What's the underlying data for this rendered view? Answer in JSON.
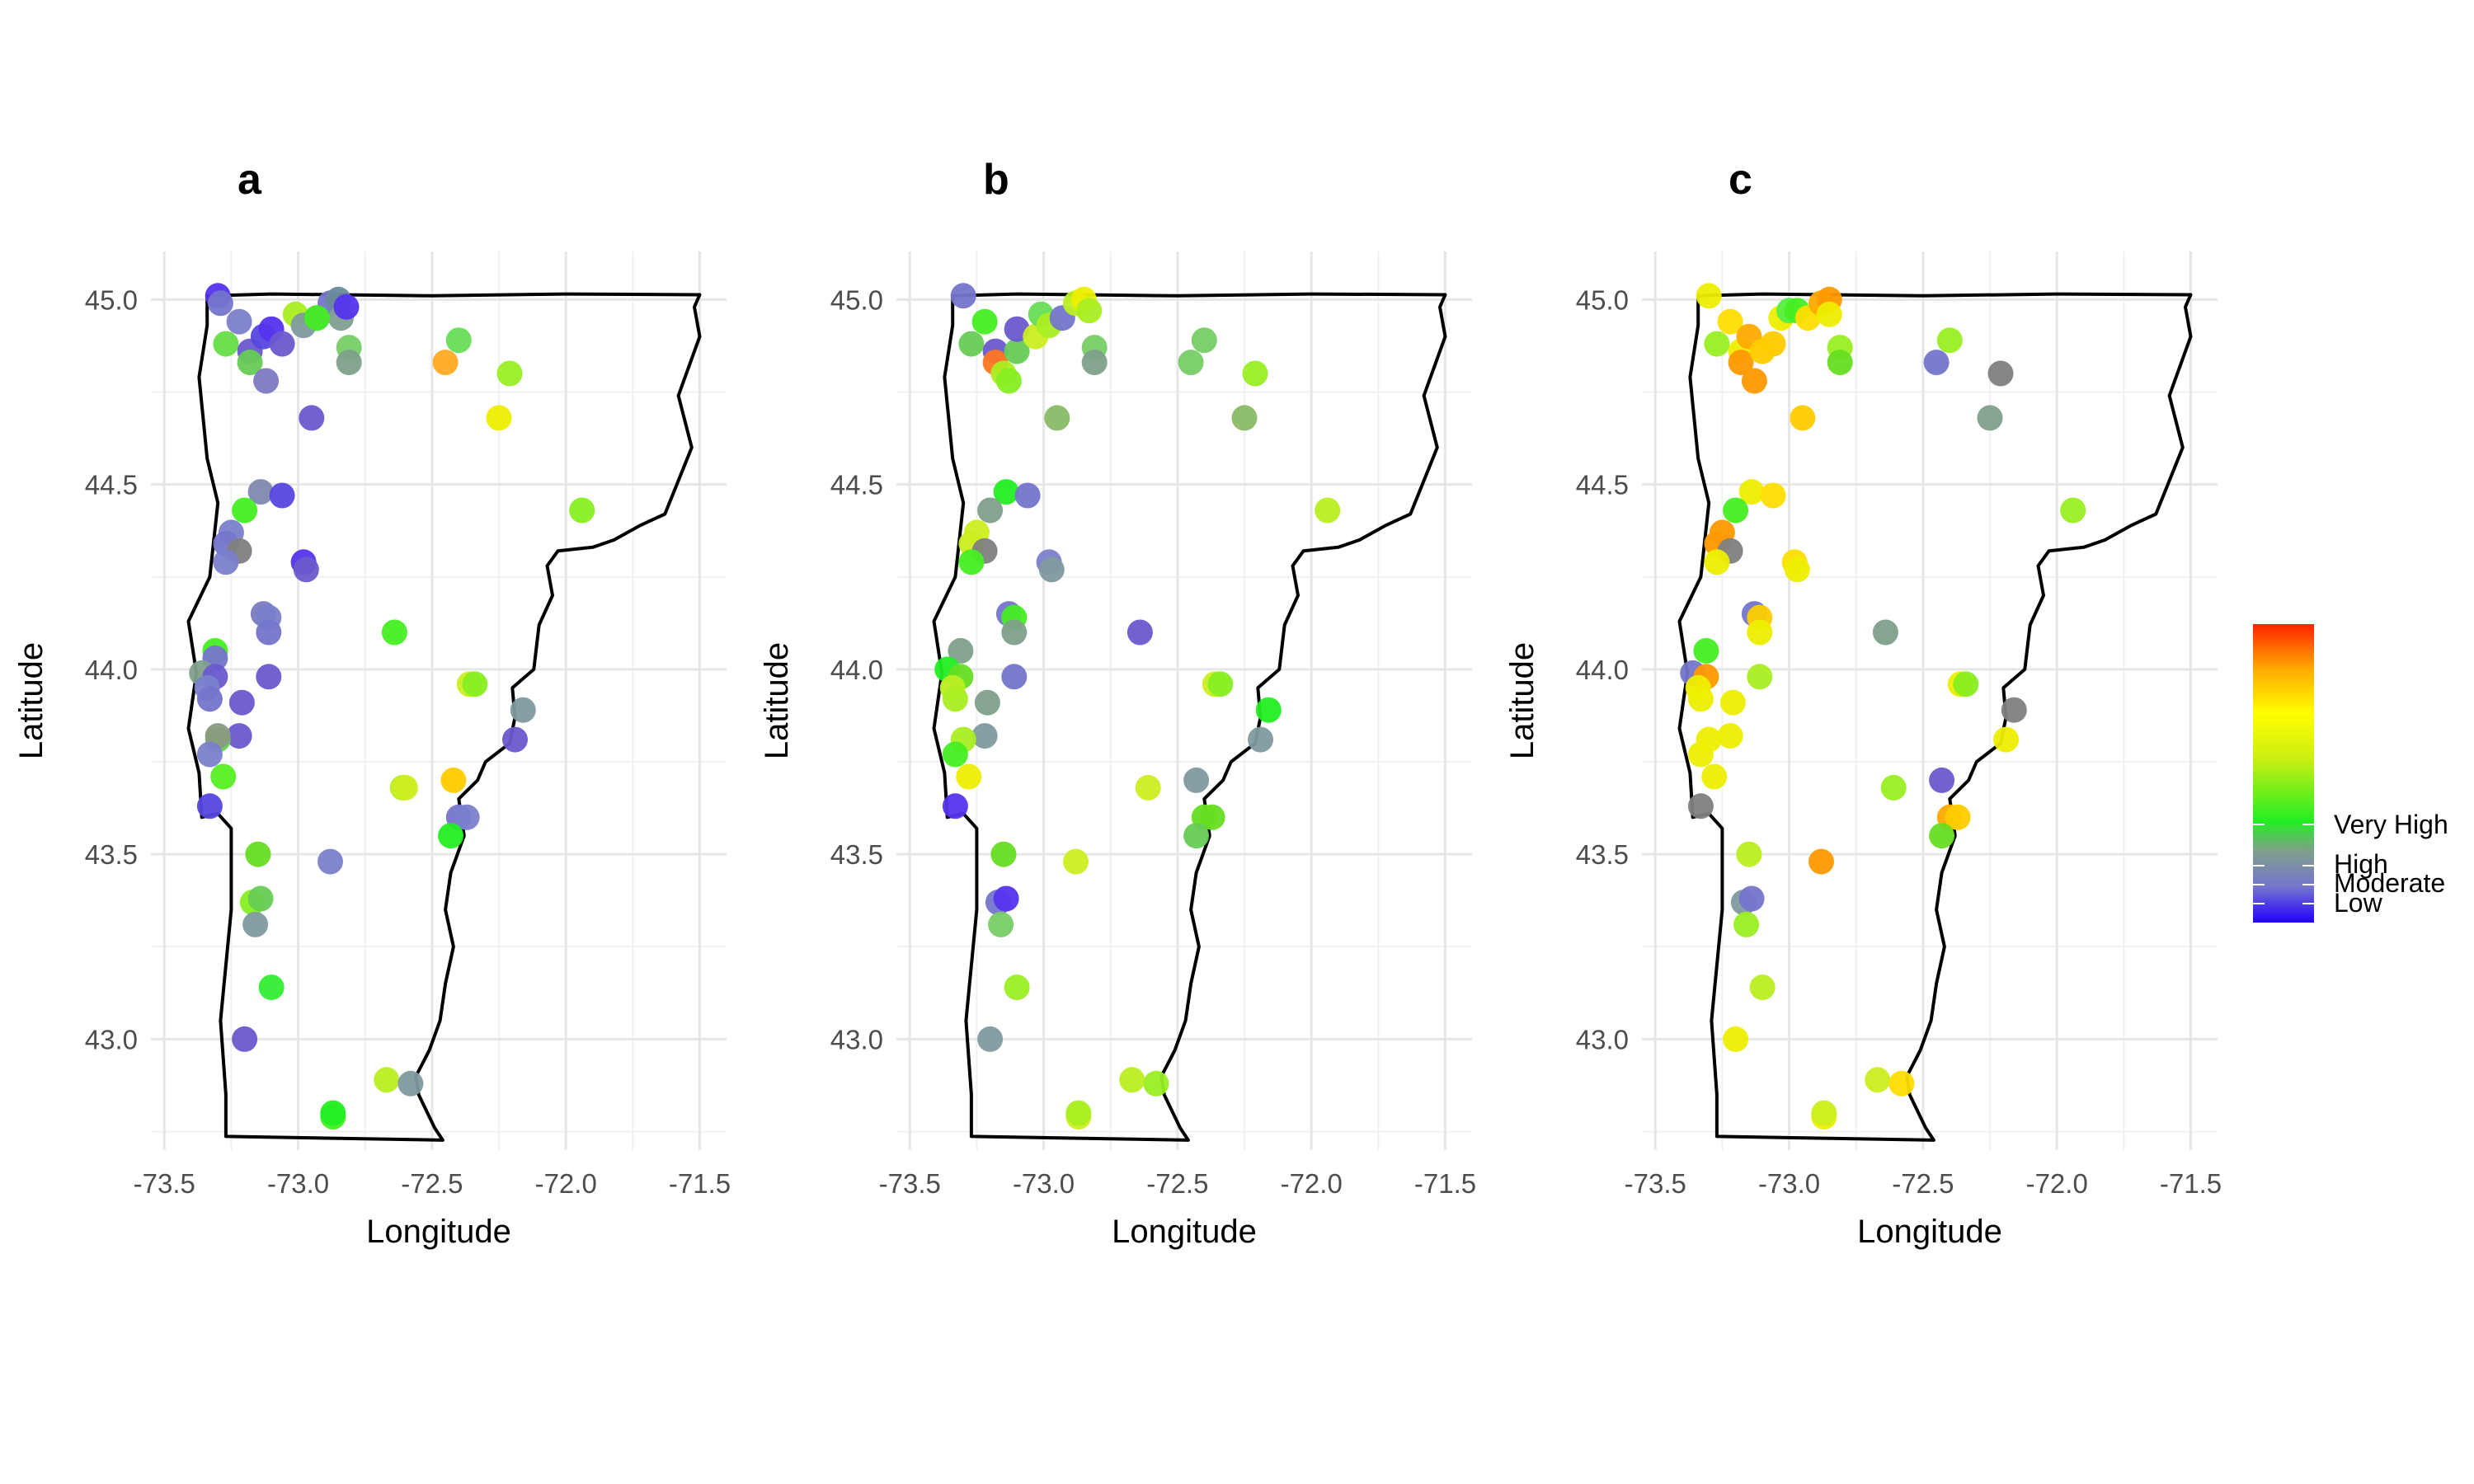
{
  "chart_data": {
    "type": "scatter",
    "xlabel": "Longitude",
    "ylabel": "Latitude",
    "xlim": [
      -73.55,
      -71.4
    ],
    "ylim": [
      42.7,
      45.13
    ],
    "x_ticks": [
      -73.5,
      -73.0,
      -72.5,
      -72.0,
      -71.5
    ],
    "x_tick_labels": [
      "-73.5",
      "-73.0",
      "-72.5",
      "-72.0",
      "-71.5"
    ],
    "y_ticks": [
      43.0,
      43.5,
      44.0,
      44.5,
      45.0
    ],
    "y_tick_labels": [
      "43.0",
      "43.5",
      "44.0",
      "44.5",
      "45.0"
    ],
    "grid": true,
    "legend": {
      "position": "right",
      "colors": {
        "Low": "#3322ff",
        "Moderate": "#7575cc",
        "High": "#7fa08a",
        "Very High": "#33ee33",
        "Extreme": "#ff3300"
      },
      "labels": [
        "Very High",
        "High",
        "Moderate",
        "Low"
      ]
    },
    "panels": [
      {
        "label": "a",
        "points": [
          [
            -73.3,
            45.01,
            "#5533ee"
          ],
          [
            -73.29,
            44.99,
            "#7575cc"
          ],
          [
            -73.22,
            44.94,
            "#7a80cc"
          ],
          [
            -73.27,
            44.88,
            "#66dd44"
          ],
          [
            -73.18,
            44.86,
            "#6a5acd"
          ],
          [
            -73.13,
            44.9,
            "#5548e0"
          ],
          [
            -73.1,
            44.92,
            "#5533ee"
          ],
          [
            -73.06,
            44.88,
            "#6a5acd"
          ],
          [
            -73.01,
            44.96,
            "#aaee22"
          ],
          [
            -72.98,
            44.93,
            "#7f9aa0"
          ],
          [
            -72.93,
            44.95,
            "#7080c0"
          ],
          [
            -72.88,
            44.99,
            "#7575cc"
          ],
          [
            -72.85,
            45.0,
            "#6a8a9a"
          ],
          [
            -72.84,
            44.95,
            "#80a090"
          ],
          [
            -72.81,
            44.87,
            "#77cc66"
          ],
          [
            -72.81,
            44.83,
            "#7fa08a"
          ],
          [
            -73.18,
            44.83,
            "#66cc55"
          ],
          [
            -73.12,
            44.78,
            "#7a7ac0"
          ],
          [
            -72.95,
            44.68,
            "#6a5acd"
          ],
          [
            -72.82,
            44.98,
            "#5533ee"
          ],
          [
            -72.93,
            44.95,
            "#44ee22"
          ],
          [
            -72.45,
            44.83,
            "#ffaa22"
          ],
          [
            -72.4,
            44.89,
            "#66dd55"
          ],
          [
            -72.25,
            44.68,
            "#eeee00"
          ],
          [
            -72.21,
            44.8,
            "#99ee22"
          ],
          [
            -71.94,
            44.43,
            "#88ee22"
          ],
          [
            -73.14,
            44.48,
            "#8088b0"
          ],
          [
            -73.06,
            44.47,
            "#5548e0"
          ],
          [
            -73.2,
            44.43,
            "#44ee22"
          ],
          [
            -73.25,
            44.37,
            "#7a80cc"
          ],
          [
            -73.27,
            44.34,
            "#7575cc"
          ],
          [
            -73.22,
            44.32,
            "#808080"
          ],
          [
            -73.27,
            44.29,
            "#7a80cc"
          ],
          [
            -72.98,
            44.29,
            "#5533ee"
          ],
          [
            -72.97,
            44.27,
            "#6a5acd"
          ],
          [
            -73.13,
            44.15,
            "#7a7ac0"
          ],
          [
            -73.11,
            44.14,
            "#7a80cc"
          ],
          [
            -73.11,
            44.1,
            "#7575cc"
          ],
          [
            -72.64,
            44.1,
            "#44ee22"
          ],
          [
            -73.11,
            43.98,
            "#6a5acd"
          ],
          [
            -73.31,
            44.05,
            "#44ee22"
          ],
          [
            -73.31,
            44.03,
            "#7575cc"
          ],
          [
            -73.36,
            43.99,
            "#7fa08a"
          ],
          [
            -73.31,
            43.98,
            "#6a5acd"
          ],
          [
            -73.34,
            43.95,
            "#7a80cc"
          ],
          [
            -73.33,
            43.92,
            "#7575cc"
          ],
          [
            -73.21,
            43.91,
            "#6a5acd"
          ],
          [
            -72.36,
            43.96,
            "#ccee22"
          ],
          [
            -72.34,
            43.96,
            "#88ee22"
          ],
          [
            -72.16,
            43.89,
            "#7f9aa0"
          ],
          [
            -73.22,
            43.82,
            "#6a5acd"
          ],
          [
            -73.3,
            43.81,
            "#66cc55"
          ],
          [
            -73.3,
            43.82,
            "#8a9a80"
          ],
          [
            -73.33,
            43.77,
            "#7a80cc"
          ],
          [
            -73.28,
            43.71,
            "#55ee22"
          ],
          [
            -72.61,
            43.68,
            "#bbee22"
          ],
          [
            -72.6,
            43.68,
            "#ccee22"
          ],
          [
            -72.42,
            43.7,
            "#ffcc00"
          ],
          [
            -72.19,
            43.81,
            "#6a5acd"
          ],
          [
            -73.33,
            43.63,
            "#5548e0"
          ],
          [
            -72.4,
            43.6,
            "#7575cc"
          ],
          [
            -72.37,
            43.6,
            "#7a80cc"
          ],
          [
            -72.43,
            43.55,
            "#22ee22"
          ],
          [
            -73.15,
            43.5,
            "#66dd22"
          ],
          [
            -72.88,
            43.48,
            "#7a80cc"
          ],
          [
            -73.17,
            43.37,
            "#88ee22"
          ],
          [
            -73.14,
            43.38,
            "#66cc55"
          ],
          [
            -73.16,
            43.31,
            "#7f9aa0"
          ],
          [
            -73.1,
            43.14,
            "#33ee33"
          ],
          [
            -73.2,
            43.0,
            "#6a5acd"
          ],
          [
            -72.67,
            42.89,
            "#bbee22"
          ],
          [
            -72.58,
            42.88,
            "#7f9aa0"
          ],
          [
            -72.87,
            42.79,
            "#44ee22"
          ],
          [
            -72.87,
            42.8,
            "#22ee22"
          ]
        ]
      },
      {
        "label": "b",
        "points": [
          [
            -73.3,
            45.01,
            "#7575cc"
          ],
          [
            -73.22,
            44.94,
            "#44ee22"
          ],
          [
            -73.27,
            44.88,
            "#66cc55"
          ],
          [
            -73.18,
            44.86,
            "#6a5acd"
          ],
          [
            -73.18,
            44.83,
            "#ff7722"
          ],
          [
            -73.15,
            44.8,
            "#aaee22"
          ],
          [
            -73.13,
            44.78,
            "#88ee22"
          ],
          [
            -73.1,
            44.86,
            "#66cc55"
          ],
          [
            -73.1,
            44.92,
            "#6a5acd"
          ],
          [
            -73.03,
            44.9,
            "#ccee22"
          ],
          [
            -73.01,
            44.96,
            "#66dd55"
          ],
          [
            -72.98,
            44.93,
            "#aaee22"
          ],
          [
            -72.93,
            44.95,
            "#7575cc"
          ],
          [
            -72.88,
            44.99,
            "#bbee22"
          ],
          [
            -72.85,
            45.0,
            "#eeee00"
          ],
          [
            -72.83,
            44.97,
            "#aaee22"
          ],
          [
            -72.81,
            44.87,
            "#77cc66"
          ],
          [
            -72.81,
            44.83,
            "#7fa08a"
          ],
          [
            -72.95,
            44.68,
            "#88bb66"
          ],
          [
            -72.45,
            44.83,
            "#77cc66"
          ],
          [
            -72.4,
            44.89,
            "#77cc66"
          ],
          [
            -72.25,
            44.68,
            "#88bb66"
          ],
          [
            -72.21,
            44.8,
            "#99ee22"
          ],
          [
            -71.94,
            44.43,
            "#bbee22"
          ],
          [
            -73.14,
            44.48,
            "#22ee22"
          ],
          [
            -73.06,
            44.47,
            "#7575cc"
          ],
          [
            -73.2,
            44.43,
            "#7fa08a"
          ],
          [
            -73.25,
            44.37,
            "#ccee22"
          ],
          [
            -73.27,
            44.34,
            "#ccee22"
          ],
          [
            -73.22,
            44.32,
            "#808080"
          ],
          [
            -73.27,
            44.29,
            "#44ee22"
          ],
          [
            -72.98,
            44.29,
            "#7a80cc"
          ],
          [
            -72.97,
            44.27,
            "#7f9aa0"
          ],
          [
            -73.13,
            44.15,
            "#7575cc"
          ],
          [
            -73.11,
            44.14,
            "#44ee22"
          ],
          [
            -73.11,
            44.1,
            "#7fa08a"
          ],
          [
            -72.64,
            44.1,
            "#6a5acd"
          ],
          [
            -73.11,
            43.98,
            "#7575cc"
          ],
          [
            -73.31,
            44.05,
            "#7fa08a"
          ],
          [
            -73.36,
            44.0,
            "#22ee22"
          ],
          [
            -73.31,
            43.98,
            "#66dd22"
          ],
          [
            -73.34,
            43.95,
            "#bbee22"
          ],
          [
            -73.33,
            43.92,
            "#aaee22"
          ],
          [
            -73.21,
            43.91,
            "#7fa08a"
          ],
          [
            -72.36,
            43.96,
            "#ccee22"
          ],
          [
            -72.34,
            43.96,
            "#88ee22"
          ],
          [
            -72.16,
            43.89,
            "#22ee22"
          ],
          [
            -73.22,
            43.82,
            "#7f9aa0"
          ],
          [
            -73.3,
            43.81,
            "#aaee22"
          ],
          [
            -73.33,
            43.77,
            "#44ee22"
          ],
          [
            -73.28,
            43.71,
            "#eeee00"
          ],
          [
            -72.61,
            43.68,
            "#ccee22"
          ],
          [
            -72.43,
            43.7,
            "#7f9aa0"
          ],
          [
            -72.19,
            43.81,
            "#7f9aa0"
          ],
          [
            -73.33,
            43.63,
            "#5533ee"
          ],
          [
            -72.4,
            43.6,
            "#66dd22"
          ],
          [
            -72.37,
            43.6,
            "#66dd22"
          ],
          [
            -72.43,
            43.55,
            "#66cc55"
          ],
          [
            -73.15,
            43.5,
            "#66dd22"
          ],
          [
            -72.88,
            43.48,
            "#ccee22"
          ],
          [
            -73.17,
            43.37,
            "#7575cc"
          ],
          [
            -73.14,
            43.38,
            "#5533ee"
          ],
          [
            -73.16,
            43.31,
            "#77cc66"
          ],
          [
            -73.1,
            43.14,
            "#99ee22"
          ],
          [
            -73.2,
            43.0,
            "#7f9aa0"
          ],
          [
            -72.67,
            42.89,
            "#bbee22"
          ],
          [
            -72.58,
            42.88,
            "#99ee22"
          ],
          [
            -72.87,
            42.79,
            "#ccee22"
          ],
          [
            -72.87,
            42.8,
            "#aaee22"
          ]
        ]
      },
      {
        "label": "c",
        "points": [
          [
            -73.3,
            45.01,
            "#eeee00"
          ],
          [
            -73.22,
            44.94,
            "#ffdd00"
          ],
          [
            -73.27,
            44.88,
            "#99ee22"
          ],
          [
            -73.18,
            44.86,
            "#eeee00"
          ],
          [
            -73.18,
            44.83,
            "#ff9900"
          ],
          [
            -73.15,
            44.9,
            "#ffaa00"
          ],
          [
            -73.13,
            44.78,
            "#ff9900"
          ],
          [
            -73.1,
            44.86,
            "#ffcc00"
          ],
          [
            -73.06,
            44.88,
            "#ffcc00"
          ],
          [
            -73.03,
            44.95,
            "#eeee00"
          ],
          [
            -73.0,
            44.97,
            "#55ee44"
          ],
          [
            -72.97,
            44.97,
            "#44ee22"
          ],
          [
            -72.93,
            44.95,
            "#ffdd00"
          ],
          [
            -72.88,
            44.99,
            "#ffaa00"
          ],
          [
            -72.85,
            45.0,
            "#ff9900"
          ],
          [
            -72.85,
            44.96,
            "#eeee00"
          ],
          [
            -72.81,
            44.87,
            "#99ee22"
          ],
          [
            -72.81,
            44.83,
            "#66dd22"
          ],
          [
            -72.95,
            44.68,
            "#ffcc00"
          ],
          [
            -72.45,
            44.83,
            "#7575cc"
          ],
          [
            -72.4,
            44.89,
            "#99ee22"
          ],
          [
            -72.25,
            44.68,
            "#7fa08a"
          ],
          [
            -72.21,
            44.8,
            "#808080"
          ],
          [
            -71.94,
            44.43,
            "#99ee22"
          ],
          [
            -73.14,
            44.48,
            "#eeee00"
          ],
          [
            -73.06,
            44.47,
            "#ffdd00"
          ],
          [
            -73.2,
            44.43,
            "#44ee22"
          ],
          [
            -73.25,
            44.37,
            "#ff9900"
          ],
          [
            -73.27,
            44.34,
            "#ff9900"
          ],
          [
            -73.22,
            44.32,
            "#808080"
          ],
          [
            -73.27,
            44.29,
            "#eeee00"
          ],
          [
            -72.98,
            44.29,
            "#ffdd00"
          ],
          [
            -72.97,
            44.27,
            "#eeee00"
          ],
          [
            -73.13,
            44.15,
            "#7575cc"
          ],
          [
            -73.11,
            44.14,
            "#ffcc00"
          ],
          [
            -73.11,
            44.1,
            "#eeee00"
          ],
          [
            -72.64,
            44.1,
            "#7fa08a"
          ],
          [
            -73.11,
            43.98,
            "#aaee22"
          ],
          [
            -73.31,
            44.05,
            "#44ee22"
          ],
          [
            -73.36,
            43.99,
            "#7575cc"
          ],
          [
            -73.31,
            43.98,
            "#ff9900"
          ],
          [
            -73.34,
            43.95,
            "#eeee00"
          ],
          [
            -73.33,
            43.92,
            "#eeee00"
          ],
          [
            -73.21,
            43.91,
            "#eeee00"
          ],
          [
            -72.36,
            43.96,
            "#eeee00"
          ],
          [
            -72.34,
            43.96,
            "#88ee22"
          ],
          [
            -72.16,
            43.89,
            "#808080"
          ],
          [
            -73.22,
            43.82,
            "#eeee00"
          ],
          [
            -73.3,
            43.81,
            "#eeee00"
          ],
          [
            -73.33,
            43.77,
            "#eeee00"
          ],
          [
            -73.28,
            43.71,
            "#eeee00"
          ],
          [
            -72.61,
            43.68,
            "#99ee22"
          ],
          [
            -72.43,
            43.7,
            "#6a5acd"
          ],
          [
            -72.19,
            43.81,
            "#eeee00"
          ],
          [
            -73.33,
            43.63,
            "#808080"
          ],
          [
            -72.4,
            43.6,
            "#ffaa00"
          ],
          [
            -72.37,
            43.6,
            "#ffcc00"
          ],
          [
            -72.43,
            43.55,
            "#66dd22"
          ],
          [
            -73.15,
            43.5,
            "#bbee22"
          ],
          [
            -72.88,
            43.48,
            "#ff9900"
          ],
          [
            -73.17,
            43.37,
            "#7f9aa0"
          ],
          [
            -73.14,
            43.38,
            "#7575cc"
          ],
          [
            -73.16,
            43.31,
            "#99ee22"
          ],
          [
            -73.1,
            43.14,
            "#bbee22"
          ],
          [
            -73.2,
            43.0,
            "#eeee00"
          ],
          [
            -72.67,
            42.89,
            "#ccee22"
          ],
          [
            -72.58,
            42.88,
            "#ffdd00"
          ],
          [
            -72.87,
            42.79,
            "#eeee00"
          ],
          [
            -72.87,
            42.8,
            "#ccee22"
          ]
        ]
      }
    ]
  }
}
